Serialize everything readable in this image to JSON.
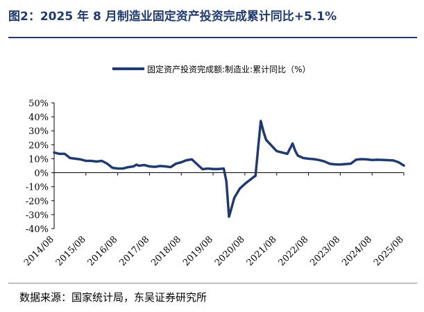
{
  "figure": {
    "title": "图2：2025 年 8 月制造业固定资产投资完成累计同比+5.1%",
    "source": "数据来源：国家统计局，东吴证券研究所"
  },
  "chart_data": {
    "type": "line",
    "legend_position": "top-center",
    "grid": false,
    "ylim": [
      -40,
      50
    ],
    "y_ticks": [
      "50%",
      "40%",
      "30%",
      "20%",
      "10%",
      "0%",
      "-10%",
      "-20%",
      "-30%",
      "-40%"
    ],
    "x_ticks": [
      "2014/08",
      "2015/08",
      "2016/08",
      "2017/08",
      "2018/08",
      "2019/08",
      "2020/08",
      "2021/08",
      "2022/08",
      "2023/08",
      "2024/08",
      "2025/08"
    ],
    "series": [
      {
        "name": "固定资产投资完成额:制造业:累计同比（%）",
        "color": "#1f3a6e",
        "points": [
          [
            "2014/08",
            14.5
          ],
          [
            "2014/10",
            13.5
          ],
          [
            "2014/12",
            13.5
          ],
          [
            "2015/02",
            10.5
          ],
          [
            "2015/04",
            10.0
          ],
          [
            "2015/06",
            9.5
          ],
          [
            "2015/08",
            8.5
          ],
          [
            "2015/10",
            8.5
          ],
          [
            "2015/12",
            8.0
          ],
          [
            "2016/02",
            8.5
          ],
          [
            "2016/04",
            6.5
          ],
          [
            "2016/06",
            3.5
          ],
          [
            "2016/08",
            3.0
          ],
          [
            "2016/10",
            3.0
          ],
          [
            "2016/12",
            4.0
          ],
          [
            "2017/02",
            4.5
          ],
          [
            "2017/03",
            5.8
          ],
          [
            "2017/04",
            5.0
          ],
          [
            "2017/06",
            5.5
          ],
          [
            "2017/08",
            4.5
          ],
          [
            "2017/10",
            4.2
          ],
          [
            "2017/12",
            4.8
          ],
          [
            "2018/02",
            4.5
          ],
          [
            "2018/04",
            4.0
          ],
          [
            "2018/06",
            6.5
          ],
          [
            "2018/08",
            7.5
          ],
          [
            "2018/10",
            9.0
          ],
          [
            "2018/12",
            9.5
          ],
          [
            "2019/02",
            6.0
          ],
          [
            "2019/04",
            2.5
          ],
          [
            "2019/06",
            3.0
          ],
          [
            "2019/08",
            2.6
          ],
          [
            "2019/10",
            2.6
          ],
          [
            "2019/12",
            3.0
          ],
          [
            "2020/01",
            -6.0
          ],
          [
            "2020/02",
            -31.5
          ],
          [
            "2020/03",
            -25.0
          ],
          [
            "2020/04",
            -18.0
          ],
          [
            "2020/06",
            -11.5
          ],
          [
            "2020/08",
            -8.0
          ],
          [
            "2020/10",
            -5.0
          ],
          [
            "2020/11",
            -3.5
          ],
          [
            "2020/12",
            -2.2
          ],
          [
            "2021/01",
            18.0
          ],
          [
            "2021/02",
            37.0
          ],
          [
            "2021/03",
            29.5
          ],
          [
            "2021/04",
            23.5
          ],
          [
            "2021/06",
            19.5
          ],
          [
            "2021/08",
            15.5
          ],
          [
            "2021/10",
            14.5
          ],
          [
            "2021/12",
            13.5
          ],
          [
            "2022/02",
            20.9
          ],
          [
            "2022/03",
            15.6
          ],
          [
            "2022/04",
            12.2
          ],
          [
            "2022/06",
            10.5
          ],
          [
            "2022/08",
            10.0
          ],
          [
            "2022/10",
            9.7
          ],
          [
            "2022/12",
            9.1
          ],
          [
            "2023/02",
            8.1
          ],
          [
            "2023/04",
            6.4
          ],
          [
            "2023/06",
            6.0
          ],
          [
            "2023/08",
            5.9
          ],
          [
            "2023/10",
            6.2
          ],
          [
            "2023/12",
            6.5
          ],
          [
            "2024/02",
            9.4
          ],
          [
            "2024/04",
            9.7
          ],
          [
            "2024/06",
            9.5
          ],
          [
            "2024/08",
            9.1
          ],
          [
            "2024/10",
            9.3
          ],
          [
            "2024/12",
            9.2
          ],
          [
            "2025/02",
            9.0
          ],
          [
            "2025/04",
            8.8
          ],
          [
            "2025/06",
            7.5
          ],
          [
            "2025/08",
            5.1
          ]
        ]
      }
    ]
  }
}
